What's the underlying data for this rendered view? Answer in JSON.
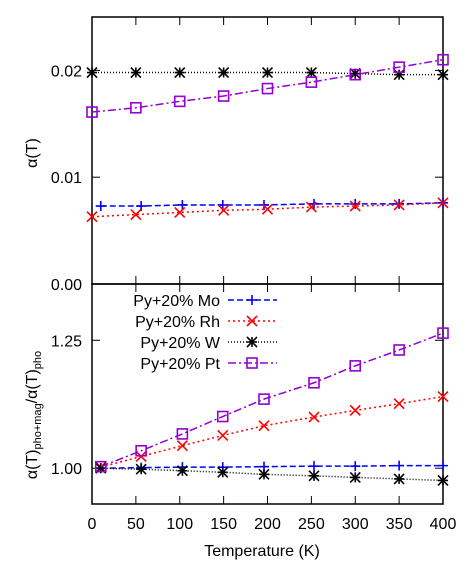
{
  "chart_data": [
    {
      "type": "line",
      "panel": "top",
      "ylabel": "α(T)",
      "ylim": [
        0.0,
        0.025
      ],
      "xlim": [
        0,
        400
      ],
      "yticks": [
        0.0,
        0.01,
        0.02
      ],
      "ytick_labels": [
        "0.00",
        "0.01",
        "0.02"
      ],
      "grid": false,
      "series": [
        {
          "key": "mo",
          "x": [
            10,
            56,
            103,
            149,
            196,
            253,
            300,
            350,
            400
          ],
          "y": [
            0.0073,
            0.0073,
            0.0074,
            0.0074,
            0.0074,
            0.0075,
            0.0075,
            0.0075,
            0.0076
          ]
        },
        {
          "key": "rh",
          "x": [
            0,
            50,
            100,
            150,
            200,
            250,
            300,
            350,
            400
          ],
          "y": [
            0.0063,
            0.0065,
            0.0067,
            0.0069,
            0.007,
            0.0072,
            0.0073,
            0.0074,
            0.0076
          ]
        },
        {
          "key": "w",
          "x": [
            0,
            50,
            100,
            150,
            200,
            250,
            300,
            350,
            400
          ],
          "y": [
            0.0198,
            0.0198,
            0.0198,
            0.0198,
            0.0198,
            0.0198,
            0.0197,
            0.0196,
            0.0196
          ]
        },
        {
          "key": "pt",
          "x": [
            0,
            50,
            100,
            150,
            200,
            250,
            300,
            350,
            400
          ],
          "y": [
            0.0161,
            0.0165,
            0.0171,
            0.0176,
            0.0183,
            0.0189,
            0.0196,
            0.0203,
            0.021
          ]
        }
      ]
    },
    {
      "type": "line",
      "panel": "bottom",
      "ylabel": "α(T)pho+mag/α(T)pho",
      "xlabel": "Temperature (K)",
      "ylim": [
        0.93,
        1.36
      ],
      "xlim": [
        0,
        400
      ],
      "xticks": [
        0,
        50,
        100,
        150,
        200,
        250,
        300,
        350,
        400
      ],
      "xtick_labels": [
        "0",
        "50",
        "100",
        "150",
        "200",
        "250",
        "300",
        "350",
        "400"
      ],
      "yticks": [
        1.0,
        1.25
      ],
      "ytick_labels": [
        "1.00",
        "1.25"
      ],
      "legend": "top-left",
      "grid": false,
      "series": [
        {
          "key": "mo",
          "name": "Py+20% Mo",
          "x": [
            10,
            56,
            103,
            149,
            196,
            253,
            300,
            350,
            400
          ],
          "y": [
            1.0,
            1.001,
            1.002,
            1.002,
            1.003,
            1.004,
            1.004,
            1.005,
            1.005
          ]
        },
        {
          "key": "rh",
          "name": "Py+20% Rh",
          "x": [
            10,
            56,
            103,
            149,
            196,
            253,
            300,
            350,
            400
          ],
          "y": [
            1.002,
            1.023,
            1.044,
            1.064,
            1.083,
            1.1,
            1.113,
            1.126,
            1.14
          ]
        },
        {
          "key": "w",
          "name": "Py+20% W",
          "x": [
            10,
            56,
            103,
            149,
            196,
            253,
            300,
            350,
            400
          ],
          "y": [
            1.0,
            0.998,
            0.995,
            0.992,
            0.988,
            0.985,
            0.982,
            0.979,
            0.976
          ]
        },
        {
          "key": "pt",
          "name": "Py+20% Pt",
          "x": [
            10,
            56,
            103,
            149,
            196,
            253,
            300,
            350,
            400
          ],
          "y": [
            1.003,
            1.034,
            1.067,
            1.101,
            1.135,
            1.167,
            1.2,
            1.231,
            1.264
          ]
        }
      ]
    }
  ],
  "styles": {
    "mo": {
      "color": "#0000ff",
      "marker": "plus",
      "dash": "6,3"
    },
    "rh": {
      "color": "#ff0000",
      "marker": "x",
      "dash": "2,3"
    },
    "w": {
      "color": "#000000",
      "marker": "star",
      "dash": "1,2"
    },
    "pt": {
      "color": "#9400d3",
      "marker": "square",
      "dash": "8,3,2,3"
    }
  }
}
